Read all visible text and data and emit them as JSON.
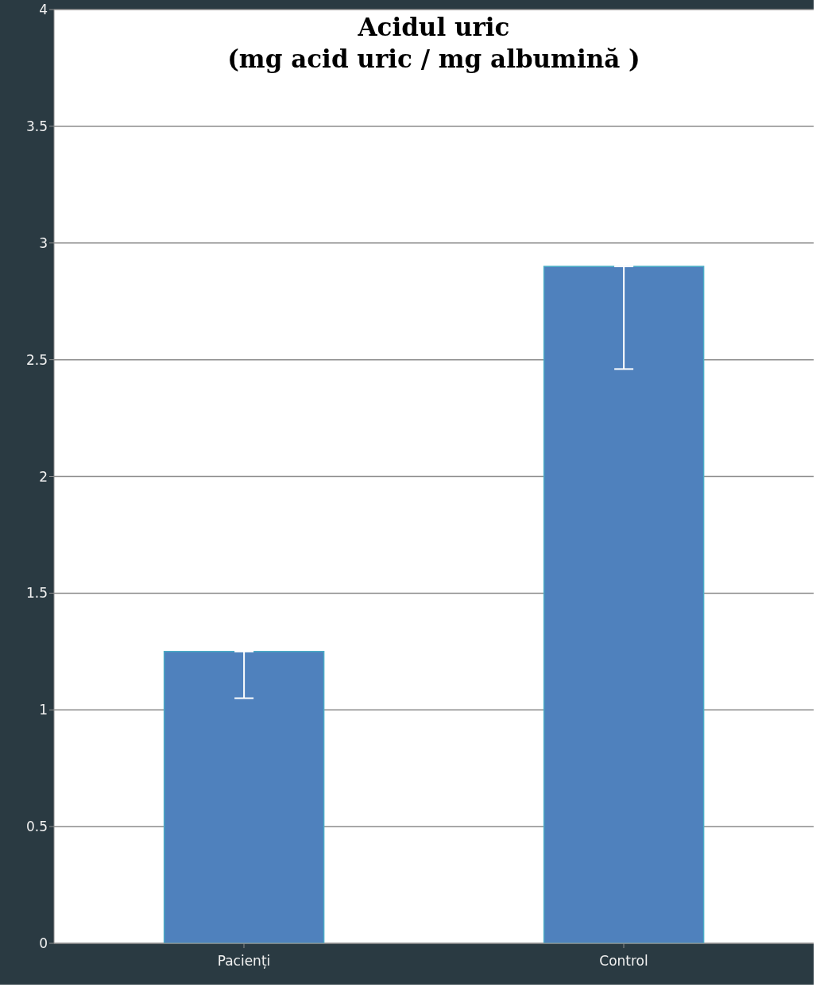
{
  "chart_data": {
    "type": "bar",
    "title": "Acidul uric\n(mg acid uric / mg albumină )",
    "categories": [
      "Pacienți",
      "Control"
    ],
    "values": [
      1.25,
      2.9
    ],
    "errors": [
      [
        1.05,
        1.25
      ],
      [
        2.46,
        2.9
      ]
    ],
    "color": "#4f81bd",
    "ylim": [
      0,
      4
    ],
    "yticks": [
      0,
      0.5,
      1,
      1.5,
      2,
      2.5,
      3,
      3.5,
      4
    ],
    "grid": "y"
  }
}
